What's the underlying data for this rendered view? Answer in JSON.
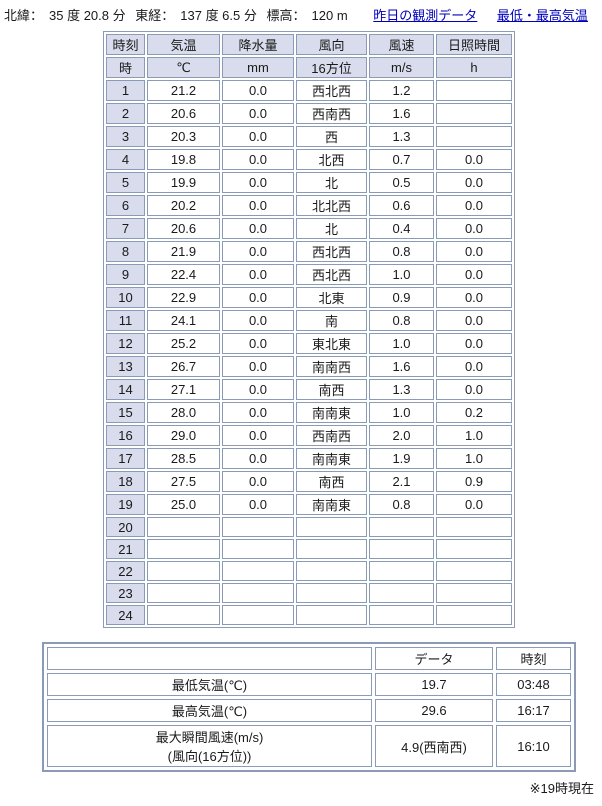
{
  "topbar": {
    "latitude_label": "北緯：",
    "latitude_value": "35 度 20.8 分",
    "longitude_label": "東経：",
    "longitude_value": "137 度 6.5 分",
    "elevation_label": "標高：",
    "elevation_value": "120 m",
    "links": {
      "yesterday_data": "昨日の観測データ",
      "min_max_temp": "最低・最高気温"
    }
  },
  "main_table": {
    "header_row1": {
      "time": "時刻",
      "temp": "気温",
      "precip": "降水量",
      "wind_dir": "風向",
      "wind_speed": "風速",
      "sunshine": "日照時間"
    },
    "header_row2": {
      "time": "時",
      "temp": "℃",
      "precip": "mm",
      "wind_dir": "16方位",
      "wind_speed": "m/s",
      "sunshine": "h"
    },
    "rows": [
      {
        "hour": "1",
        "temp": "21.2",
        "precip": "0.0",
        "wind_dir": "西北西",
        "wind_speed": "1.2",
        "sunshine": ""
      },
      {
        "hour": "2",
        "temp": "20.6",
        "precip": "0.0",
        "wind_dir": "西南西",
        "wind_speed": "1.6",
        "sunshine": ""
      },
      {
        "hour": "3",
        "temp": "20.3",
        "precip": "0.0",
        "wind_dir": "西",
        "wind_speed": "1.3",
        "sunshine": ""
      },
      {
        "hour": "4",
        "temp": "19.8",
        "precip": "0.0",
        "wind_dir": "北西",
        "wind_speed": "0.7",
        "sunshine": "0.0"
      },
      {
        "hour": "5",
        "temp": "19.9",
        "precip": "0.0",
        "wind_dir": "北",
        "wind_speed": "0.5",
        "sunshine": "0.0"
      },
      {
        "hour": "6",
        "temp": "20.2",
        "precip": "0.0",
        "wind_dir": "北北西",
        "wind_speed": "0.6",
        "sunshine": "0.0"
      },
      {
        "hour": "7",
        "temp": "20.6",
        "precip": "0.0",
        "wind_dir": "北",
        "wind_speed": "0.4",
        "sunshine": "0.0"
      },
      {
        "hour": "8",
        "temp": "21.9",
        "precip": "0.0",
        "wind_dir": "西北西",
        "wind_speed": "0.8",
        "sunshine": "0.0"
      },
      {
        "hour": "9",
        "temp": "22.4",
        "precip": "0.0",
        "wind_dir": "西北西",
        "wind_speed": "1.0",
        "sunshine": "0.0"
      },
      {
        "hour": "10",
        "temp": "22.9",
        "precip": "0.0",
        "wind_dir": "北東",
        "wind_speed": "0.9",
        "sunshine": "0.0"
      },
      {
        "hour": "11",
        "temp": "24.1",
        "precip": "0.0",
        "wind_dir": "南",
        "wind_speed": "0.8",
        "sunshine": "0.0"
      },
      {
        "hour": "12",
        "temp": "25.2",
        "precip": "0.0",
        "wind_dir": "東北東",
        "wind_speed": "1.0",
        "sunshine": "0.0"
      },
      {
        "hour": "13",
        "temp": "26.7",
        "precip": "0.0",
        "wind_dir": "南南西",
        "wind_speed": "1.6",
        "sunshine": "0.0"
      },
      {
        "hour": "14",
        "temp": "27.1",
        "precip": "0.0",
        "wind_dir": "南西",
        "wind_speed": "1.3",
        "sunshine": "0.0"
      },
      {
        "hour": "15",
        "temp": "28.0",
        "precip": "0.0",
        "wind_dir": "南南東",
        "wind_speed": "1.0",
        "sunshine": "0.2"
      },
      {
        "hour": "16",
        "temp": "29.0",
        "precip": "0.0",
        "wind_dir": "西南西",
        "wind_speed": "2.0",
        "sunshine": "1.0"
      },
      {
        "hour": "17",
        "temp": "28.5",
        "precip": "0.0",
        "wind_dir": "南南東",
        "wind_speed": "1.9",
        "sunshine": "1.0"
      },
      {
        "hour": "18",
        "temp": "27.5",
        "precip": "0.0",
        "wind_dir": "南西",
        "wind_speed": "2.1",
        "sunshine": "0.9"
      },
      {
        "hour": "19",
        "temp": "25.0",
        "precip": "0.0",
        "wind_dir": "南南東",
        "wind_speed": "0.8",
        "sunshine": "0.0"
      },
      {
        "hour": "20",
        "temp": "",
        "precip": "",
        "wind_dir": "",
        "wind_speed": "",
        "sunshine": ""
      },
      {
        "hour": "21",
        "temp": "",
        "precip": "",
        "wind_dir": "",
        "wind_speed": "",
        "sunshine": ""
      },
      {
        "hour": "22",
        "temp": "",
        "precip": "",
        "wind_dir": "",
        "wind_speed": "",
        "sunshine": ""
      },
      {
        "hour": "23",
        "temp": "",
        "precip": "",
        "wind_dir": "",
        "wind_speed": "",
        "sunshine": ""
      },
      {
        "hour": "24",
        "temp": "",
        "precip": "",
        "wind_dir": "",
        "wind_speed": "",
        "sunshine": ""
      }
    ]
  },
  "summary_table": {
    "header": {
      "label": "",
      "data": "データ",
      "time": "時刻"
    },
    "rows": [
      {
        "label": "最低気温(℃)",
        "data": "19.7",
        "time": "03:48"
      },
      {
        "label": "最高気温(℃)",
        "data": "29.6",
        "time": "16:17"
      },
      {
        "label_line1": "最大瞬間風速(m/s)",
        "label_line2": "(風向(16方位))",
        "data": "4.9(西南西)",
        "time": "16:10"
      }
    ]
  },
  "footnote": "※19時現在",
  "colors": {
    "border": "#8b9ab5",
    "header_bg": "#d8dcec",
    "link": "#0000bb"
  }
}
